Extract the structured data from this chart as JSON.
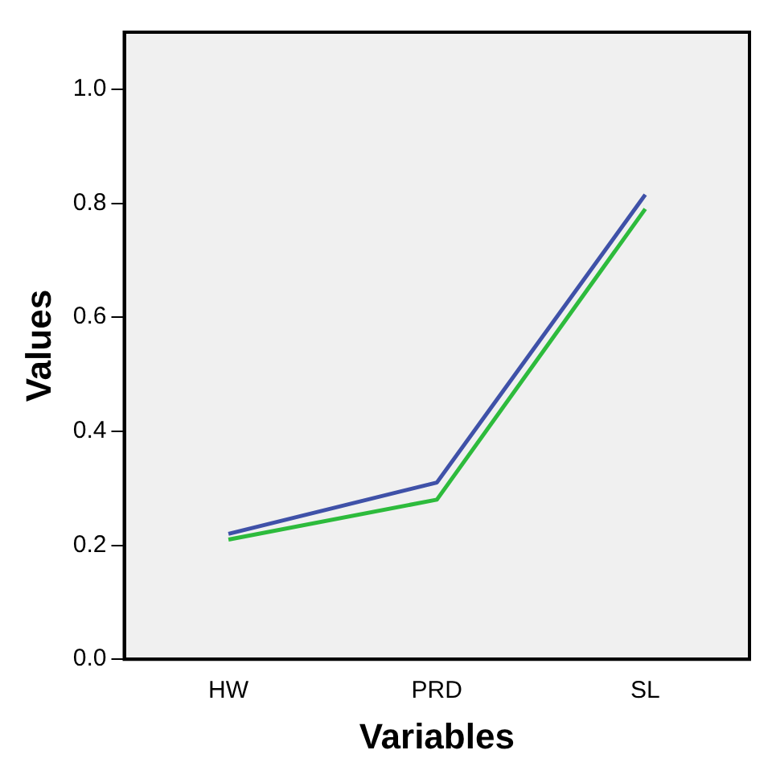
{
  "chart_data": {
    "type": "line",
    "xlabel": "Variables",
    "ylabel": "Values",
    "categories": [
      "HW",
      "PRD",
      "SL"
    ],
    "series": [
      {
        "color": "#3f51a8",
        "values": [
          0.22,
          0.31,
          0.815
        ]
      },
      {
        "color": "#2dbb3c",
        "values": [
          0.21,
          0.28,
          0.79
        ]
      }
    ],
    "ylim": [
      0,
      1.1
    ],
    "yticks": [
      {
        "value": 0,
        "label": "0.0"
      },
      {
        "value": 0.2,
        "label": "0.2"
      },
      {
        "value": 0.4,
        "label": "0.4"
      },
      {
        "value": 0.6,
        "label": "0.6"
      },
      {
        "value": 0.8,
        "label": "0.8"
      },
      {
        "value": 1,
        "label": "1.0"
      }
    ],
    "grid": false,
    "legend": false,
    "marker": "none",
    "line_style": "solid"
  }
}
